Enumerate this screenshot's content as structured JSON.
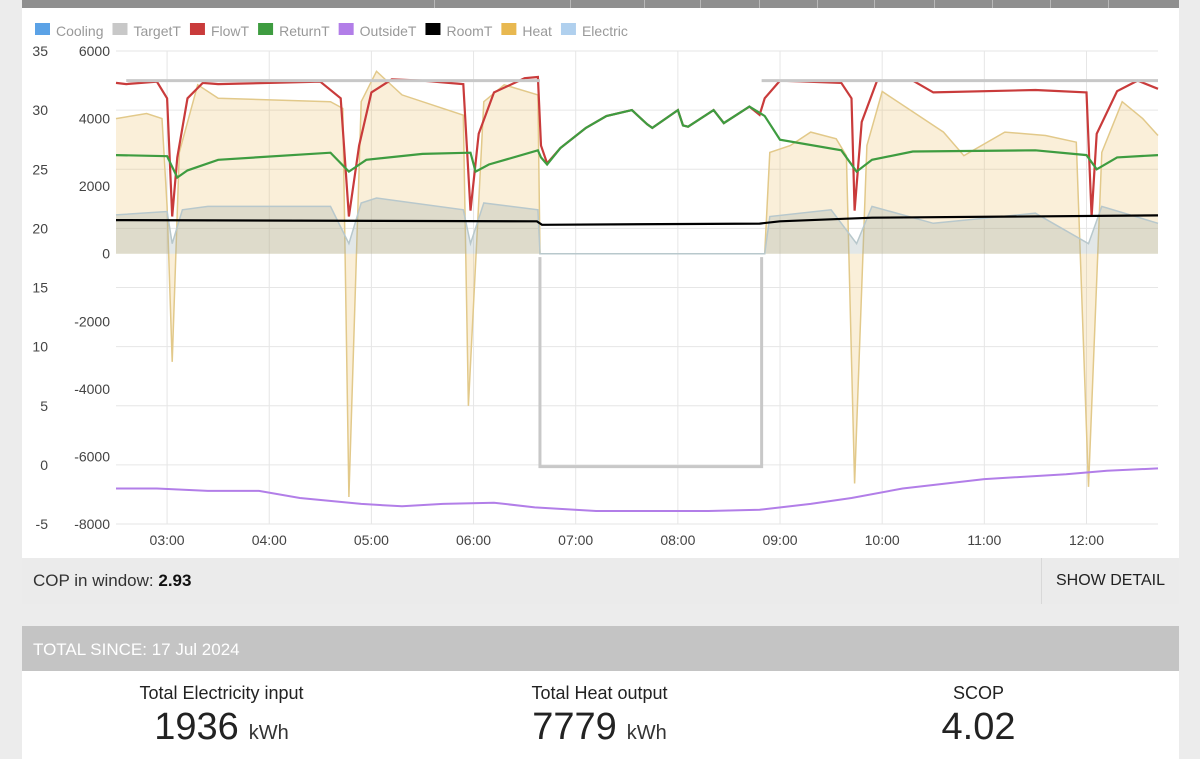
{
  "chart_data": {
    "type": "line",
    "legend": [
      {
        "name": "Cooling",
        "color": "#5ba2e6"
      },
      {
        "name": "TargetT",
        "color": "#c8c8c8"
      },
      {
        "name": "FlowT",
        "color": "#c93b3b"
      },
      {
        "name": "ReturnT",
        "color": "#3e9c40"
      },
      {
        "name": "OutsideT",
        "color": "#b27ee8"
      },
      {
        "name": "RoomT",
        "color": "#000000"
      },
      {
        "name": "Heat",
        "color": "#e8b850"
      },
      {
        "name": "Electric",
        "color": "#b0d0ee"
      }
    ],
    "legend_position": "top-left",
    "x_ticks": [
      "03:00",
      "04:00",
      "05:00",
      "06:00",
      "07:00",
      "08:00",
      "09:00",
      "10:00",
      "11:00",
      "12:00"
    ],
    "x_range_hours": [
      2.5,
      12.7
    ],
    "y_left": {
      "range": [
        -5,
        35
      ],
      "ticks": [
        "35",
        "30",
        "25",
        "20",
        "15",
        "10",
        "5",
        "0",
        "-5"
      ]
    },
    "y_power": {
      "range": [
        -8000,
        6000
      ],
      "ticks": [
        "6000",
        "4000",
        "2000",
        "0",
        "-2000",
        "-4000",
        "-6000",
        "-8000"
      ]
    },
    "grid": true,
    "series_temperature": [
      {
        "name": "FlowT",
        "points": [
          [
            2.5,
            32.3
          ],
          [
            2.6,
            32.2
          ],
          [
            2.9,
            32.4
          ],
          [
            3.0,
            31.0
          ],
          [
            3.05,
            21.0
          ],
          [
            3.1,
            26.0
          ],
          [
            3.2,
            31.0
          ],
          [
            3.35,
            32.3
          ],
          [
            3.5,
            32.2
          ],
          [
            4.5,
            32.4
          ],
          [
            4.7,
            31.0
          ],
          [
            4.78,
            21.0
          ],
          [
            4.88,
            27.0
          ],
          [
            5.0,
            31.5
          ],
          [
            5.2,
            32.6
          ],
          [
            5.5,
            32.5
          ],
          [
            5.9,
            32.2
          ],
          [
            5.97,
            21.5
          ],
          [
            6.05,
            28.0
          ],
          [
            6.2,
            31.5
          ],
          [
            6.5,
            32.7
          ],
          [
            6.63,
            32.8
          ],
          [
            6.66,
            27.0
          ],
          [
            6.72,
            25.5
          ],
          [
            6.85,
            26.8
          ],
          [
            7.1,
            28.5
          ],
          [
            7.3,
            29.5
          ],
          [
            7.55,
            30.0
          ],
          [
            7.7,
            28.8
          ],
          [
            7.75,
            28.5
          ],
          [
            8.0,
            30.0
          ],
          [
            8.05,
            28.7
          ],
          [
            8.1,
            28.6
          ],
          [
            8.35,
            30.0
          ],
          [
            8.45,
            28.9
          ],
          [
            8.7,
            30.3
          ],
          [
            8.8,
            29.6
          ],
          [
            8.85,
            31.0
          ],
          [
            9.0,
            32.5
          ],
          [
            9.6,
            32.3
          ],
          [
            9.7,
            31.0
          ],
          [
            9.73,
            21.5
          ],
          [
            9.8,
            29.0
          ],
          [
            9.95,
            32.5
          ],
          [
            10.3,
            32.5
          ],
          [
            10.5,
            31.5
          ],
          [
            11.5,
            31.7
          ],
          [
            12.0,
            31.5
          ],
          [
            12.05,
            21.0
          ],
          [
            12.1,
            28.0
          ],
          [
            12.3,
            31.6
          ],
          [
            12.5,
            32.5
          ],
          [
            12.7,
            31.8
          ]
        ]
      },
      {
        "name": "TargetT",
        "points": [
          [
            2.5,
            32.5
          ],
          [
            12.7,
            32.5
          ]
        ]
      },
      {
        "name": "ReturnT",
        "points": [
          [
            2.5,
            26.2
          ],
          [
            3.0,
            26.1
          ],
          [
            3.1,
            24.3
          ],
          [
            3.2,
            24.9
          ],
          [
            3.5,
            25.8
          ],
          [
            4.6,
            26.4
          ],
          [
            4.78,
            24.8
          ],
          [
            4.95,
            25.8
          ],
          [
            5.5,
            26.3
          ],
          [
            5.97,
            26.4
          ],
          [
            6.02,
            24.8
          ],
          [
            6.15,
            25.4
          ],
          [
            6.63,
            26.6
          ],
          [
            6.66,
            26.0
          ],
          [
            6.72,
            25.4
          ],
          [
            6.85,
            26.8
          ],
          [
            7.1,
            28.5
          ],
          [
            7.3,
            29.5
          ],
          [
            7.55,
            30.0
          ],
          [
            7.7,
            28.8
          ],
          [
            7.75,
            28.5
          ],
          [
            8.0,
            30.0
          ],
          [
            8.05,
            28.7
          ],
          [
            8.1,
            28.6
          ],
          [
            8.35,
            30.0
          ],
          [
            8.45,
            28.9
          ],
          [
            8.7,
            30.3
          ],
          [
            8.85,
            29.5
          ],
          [
            9.0,
            27.5
          ],
          [
            9.6,
            26.6
          ],
          [
            9.75,
            24.8
          ],
          [
            9.9,
            25.8
          ],
          [
            10.3,
            26.5
          ],
          [
            11.5,
            26.6
          ],
          [
            12.0,
            26.2
          ],
          [
            12.1,
            25.0
          ],
          [
            12.3,
            26.0
          ],
          [
            12.7,
            26.2
          ]
        ]
      },
      {
        "name": "RoomT",
        "points": [
          [
            2.5,
            20.7
          ],
          [
            6.62,
            20.6
          ],
          [
            6.67,
            20.3
          ],
          [
            8.8,
            20.4
          ],
          [
            9.0,
            20.6
          ],
          [
            9.9,
            20.9
          ],
          [
            12.7,
            21.1
          ]
        ]
      },
      {
        "name": "OutsideT",
        "points": [
          [
            2.5,
            -2.0
          ],
          [
            2.9,
            -2.0
          ],
          [
            3.4,
            -2.2
          ],
          [
            3.9,
            -2.2
          ],
          [
            4.3,
            -2.8
          ],
          [
            4.9,
            -3.3
          ],
          [
            5.3,
            -3.5
          ],
          [
            5.7,
            -3.3
          ],
          [
            6.2,
            -3.2
          ],
          [
            6.6,
            -3.6
          ],
          [
            7.2,
            -3.9
          ],
          [
            8.3,
            -3.9
          ],
          [
            8.8,
            -3.8
          ],
          [
            9.3,
            -3.3
          ],
          [
            9.7,
            -2.8
          ],
          [
            10.2,
            -2.0
          ],
          [
            11.0,
            -1.2
          ],
          [
            11.8,
            -0.8
          ],
          [
            12.2,
            -0.5
          ],
          [
            12.7,
            -0.3
          ]
        ]
      }
    ],
    "series_power": [
      {
        "name": "Heat",
        "points": [
          [
            2.5,
            4000
          ],
          [
            2.8,
            4150
          ],
          [
            2.95,
            4000
          ],
          [
            3.0,
            1400
          ],
          [
            3.05,
            -3200
          ],
          [
            3.12,
            3000
          ],
          [
            3.3,
            5000
          ],
          [
            3.5,
            4600
          ],
          [
            4.6,
            4500
          ],
          [
            4.72,
            4300
          ],
          [
            4.78,
            -7200
          ],
          [
            4.9,
            4500
          ],
          [
            5.05,
            5400
          ],
          [
            5.3,
            4700
          ],
          [
            5.9,
            4100
          ],
          [
            5.95,
            -4500
          ],
          [
            6.1,
            4500
          ],
          [
            6.3,
            5000
          ],
          [
            6.63,
            4700
          ],
          [
            6.65,
            0
          ],
          [
            8.85,
            0
          ],
          [
            8.9,
            3000
          ],
          [
            9.1,
            3200
          ],
          [
            9.3,
            3600
          ],
          [
            9.55,
            3400
          ],
          [
            9.65,
            2900
          ],
          [
            9.73,
            -6800
          ],
          [
            9.85,
            3200
          ],
          [
            10.0,
            4800
          ],
          [
            10.3,
            4200
          ],
          [
            10.6,
            3600
          ],
          [
            10.8,
            2900
          ],
          [
            11.2,
            3600
          ],
          [
            11.6,
            3500
          ],
          [
            11.9,
            3300
          ],
          [
            12.02,
            -6900
          ],
          [
            12.15,
            3000
          ],
          [
            12.35,
            4500
          ],
          [
            12.55,
            4000
          ],
          [
            12.7,
            3500
          ]
        ]
      },
      {
        "name": "Electric",
        "points": [
          [
            2.5,
            1150
          ],
          [
            3.0,
            1250
          ],
          [
            3.05,
            300
          ],
          [
            3.15,
            1300
          ],
          [
            3.4,
            1400
          ],
          [
            4.6,
            1400
          ],
          [
            4.78,
            300
          ],
          [
            4.9,
            1500
          ],
          [
            5.05,
            1650
          ],
          [
            5.9,
            1300
          ],
          [
            5.97,
            300
          ],
          [
            6.1,
            1500
          ],
          [
            6.63,
            1300
          ],
          [
            6.65,
            0
          ],
          [
            8.85,
            0
          ],
          [
            8.9,
            1100
          ],
          [
            9.5,
            1300
          ],
          [
            9.75,
            300
          ],
          [
            9.9,
            1400
          ],
          [
            10.5,
            900
          ],
          [
            11.5,
            1200
          ],
          [
            12.02,
            300
          ],
          [
            12.15,
            1400
          ],
          [
            12.7,
            900
          ]
        ]
      }
    ],
    "target_low_block": {
      "from_hour": 6.65,
      "to_hour": 8.82,
      "value_upper_power": -100,
      "value_lower_power": -6300
    }
  },
  "cop": {
    "label": "COP in window:",
    "value": "2.93",
    "button": "SHOW DETAIL"
  },
  "totals": {
    "header": "TOTAL SINCE: 17 Jul 2024",
    "electric": {
      "label": "Total Electricity input",
      "value": "1936",
      "unit": "kWh"
    },
    "heat": {
      "label": "Total Heat output",
      "value": "7779",
      "unit": "kWh"
    },
    "scop": {
      "label": "SCOP",
      "value": "4.02"
    }
  }
}
